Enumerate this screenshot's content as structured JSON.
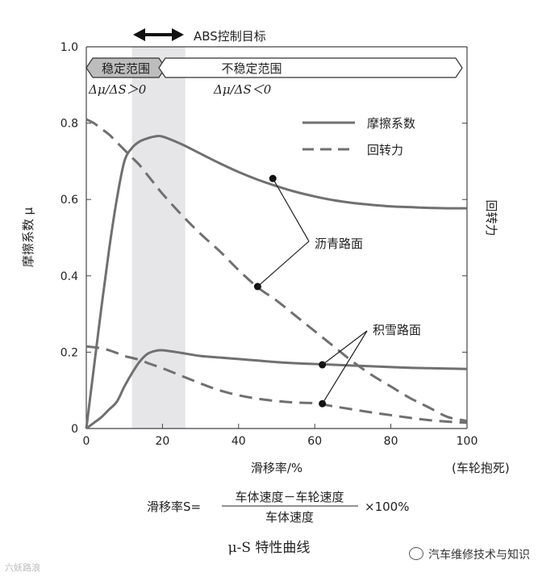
{
  "chart_data": {
    "type": "line",
    "x": [
      0,
      2,
      4,
      6,
      8,
      10,
      12,
      14,
      16,
      18,
      20,
      25,
      30,
      35,
      40,
      45,
      50,
      55,
      60,
      65,
      70,
      75,
      80,
      85,
      90,
      95,
      100
    ],
    "series": [
      {
        "name": "摩擦系数",
        "group": "沥青路面",
        "style": "solid",
        "values": [
          0.0,
          0.16,
          0.32,
          0.47,
          0.6,
          0.7,
          0.735,
          0.752,
          0.76,
          0.765,
          0.765,
          0.745,
          0.72,
          0.695,
          0.672,
          0.652,
          0.635,
          0.62,
          0.608,
          0.598,
          0.591,
          0.586,
          0.582,
          0.58,
          0.578,
          0.577,
          0.577
        ]
      },
      {
        "name": "回转力",
        "group": "沥青路面",
        "style": "dashed",
        "values": [
          0.81,
          0.8,
          0.785,
          0.77,
          0.75,
          0.73,
          0.71,
          0.69,
          0.665,
          0.64,
          0.615,
          0.56,
          0.51,
          0.465,
          0.415,
          0.37,
          0.335,
          0.295,
          0.255,
          0.215,
          0.175,
          0.14,
          0.11,
          0.08,
          0.055,
          0.03,
          0.02
        ]
      },
      {
        "name": "摩擦系数",
        "group": "积雪路面",
        "style": "solid",
        "values": [
          0.0,
          0.015,
          0.03,
          0.05,
          0.07,
          0.11,
          0.145,
          0.175,
          0.195,
          0.203,
          0.205,
          0.198,
          0.19,
          0.186,
          0.182,
          0.178,
          0.174,
          0.171,
          0.169,
          0.167,
          0.165,
          0.163,
          0.161,
          0.159,
          0.158,
          0.157,
          0.156
        ]
      },
      {
        "name": "回转力",
        "group": "积雪路面",
        "style": "dashed",
        "values": [
          0.215,
          0.213,
          0.21,
          0.205,
          0.198,
          0.19,
          0.185,
          0.18,
          0.172,
          0.165,
          0.158,
          0.138,
          0.118,
          0.1,
          0.087,
          0.078,
          0.072,
          0.068,
          0.066,
          0.058,
          0.05,
          0.042,
          0.035,
          0.028,
          0.022,
          0.018,
          0.015
        ]
      }
    ],
    "xlim": [
      0,
      100
    ],
    "ylim": [
      0,
      1.0
    ],
    "xticks": [
      0,
      20,
      40,
      60,
      80,
      100
    ],
    "yticks": [
      0,
      0.2,
      0.4,
      0.6,
      0.8,
      1.0
    ],
    "ytick_labels": [
      "0",
      "0.2",
      "0.4",
      "0.6",
      "0.8",
      "1.0"
    ],
    "xlabel": "滑移率/%",
    "xlabel_right": "(车轮抱死)",
    "ylabel": "摩擦系数 μ",
    "ylabel_right": "回转力",
    "shaded_band": [
      12,
      26
    ],
    "legend": {
      "placement": "top-right",
      "items": [
        {
          "label": "摩擦系数",
          "style": "solid"
        },
        {
          "label": "回转力",
          "style": "dashed"
        }
      ]
    },
    "abs_target_label": "ABS控制目标",
    "stable_label": "稳定范围",
    "unstable_label": "不稳定范围",
    "stable_condition": "Δμ/ΔS＞0",
    "unstable_condition": "Δμ/ΔS＜0",
    "annotations": [
      {
        "text": "沥青路面",
        "points": [
          {
            "x": 49,
            "y": 0.655
          },
          {
            "x": 45,
            "y": 0.372
          }
        ]
      },
      {
        "text": "积雪路面",
        "points": [
          {
            "x": 62,
            "y": 0.167
          },
          {
            "x": 62,
            "y": 0.065
          }
        ]
      }
    ],
    "title": "μ-S 特性曲线"
  },
  "formula": {
    "lhs": "滑移率S=",
    "numerator": "车体速度－车轮速度",
    "denominator": "车体速度",
    "rhs": "×100%"
  },
  "watermark": {
    "left": "六妖路浪",
    "right": "汽车维修技术与知识"
  }
}
